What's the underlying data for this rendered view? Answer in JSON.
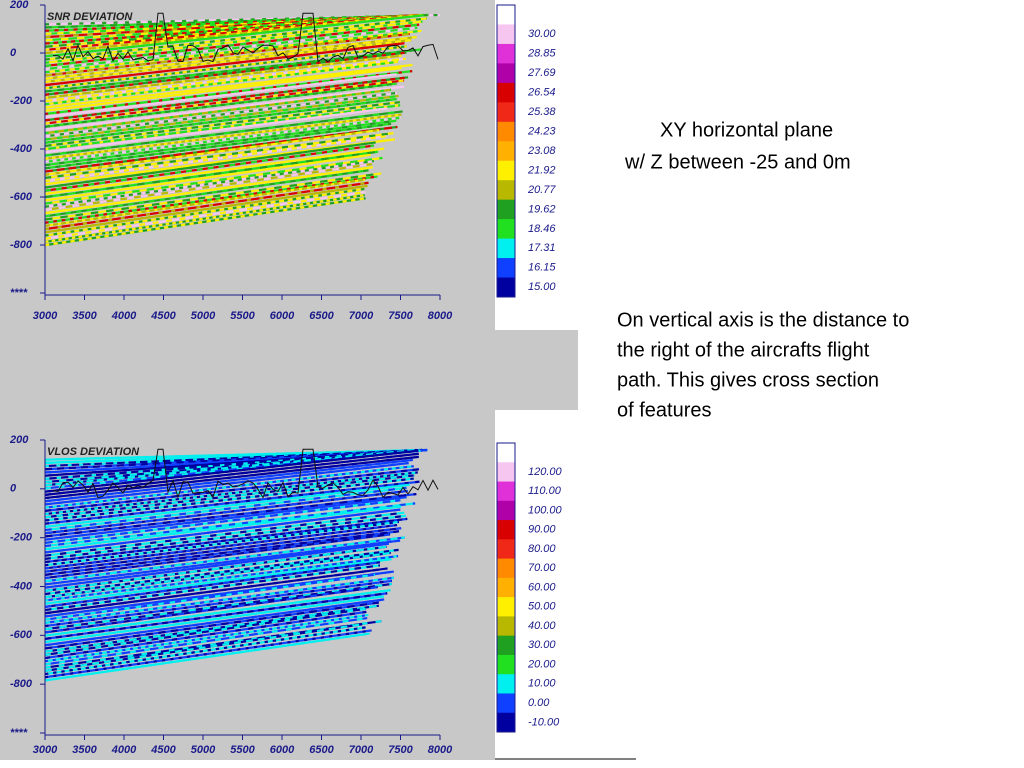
{
  "panels": [
    {
      "title": "SNR DEVIATION",
      "x_ticks": [
        "3000",
        "3500",
        "4000",
        "4500",
        "5000",
        "5500",
        "6000",
        "6500",
        "7000",
        "7500",
        "8000"
      ],
      "y_ticks": [
        "200",
        "0",
        "-200",
        "-400",
        "-600",
        "-800",
        "****"
      ],
      "colorbar": {
        "labels": [
          "30.00",
          "28.85",
          "27.69",
          "26.54",
          "25.38",
          "24.23",
          "23.08",
          "21.92",
          "20.77",
          "19.62",
          "18.46",
          "17.31",
          "16.15",
          "15.00"
        ],
        "colors": [
          "#ffffff",
          "#f6c6f0",
          "#e030d8",
          "#b000a8",
          "#d80000",
          "#f02818",
          "#ff8a00",
          "#ffb000",
          "#fff000",
          "#b8b800",
          "#20a020",
          "#20e020",
          "#00f0f0",
          "#1040ff",
          "#0000a0"
        ]
      }
    },
    {
      "title": "VLOS DEVIATION",
      "x_ticks": [
        "3000",
        "3500",
        "4000",
        "4500",
        "5000",
        "5500",
        "6000",
        "6500",
        "7000",
        "7500",
        "8000"
      ],
      "y_ticks": [
        "200",
        "0",
        "-200",
        "-400",
        "-600",
        "-800",
        "****"
      ],
      "colorbar": {
        "labels": [
          "120.00",
          "110.00",
          "100.00",
          "90.00",
          "80.00",
          "70.00",
          "60.00",
          "50.00",
          "40.00",
          "30.00",
          "20.00",
          "10.00",
          "0.00",
          "-10.00"
        ],
        "colors": [
          "#ffffff",
          "#f6c6f0",
          "#e030d8",
          "#b000a8",
          "#d80000",
          "#f02818",
          "#ff8a00",
          "#ffb000",
          "#fff000",
          "#b8b800",
          "#20a020",
          "#20e020",
          "#00f0f0",
          "#1040ff",
          "#0000a0"
        ]
      }
    }
  ],
  "notes": {
    "heading": [
      "XY horizontal plane",
      "w/ Z between -25 and 0m"
    ],
    "body": [
      "On vertical axis is the distance to",
      "the right of the aircrafts flight",
      "path. This gives cross section",
      "of features"
    ]
  }
}
